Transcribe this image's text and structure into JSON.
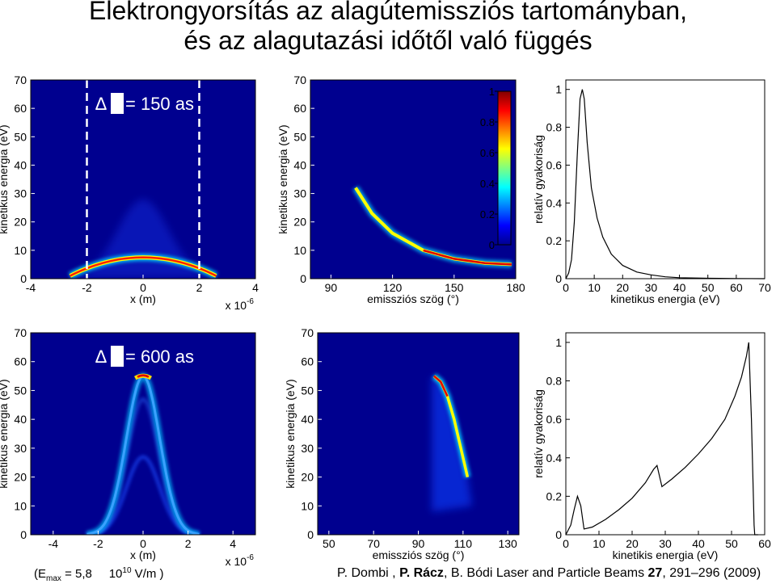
{
  "title_line1": "Elektrongyorsítás az alagútemissziós tartományban,",
  "title_line2": "és az alagutazási időtől való függés",
  "footer": {
    "emax_prefix": "(E",
    "emax_sub": "max",
    "emax_mid": " = 5,8",
    "emax_base": "10",
    "emax_exp": "10",
    "emax_suffix": " V/m )",
    "credit_a": "P. Dombi , ",
    "credit_b": "P. Rácz",
    "credit_c": ", B. Bódi  Laser and Particle Beams ",
    "credit_vol": "27",
    "credit_d": ", 291–296 (2009)"
  },
  "chart_data": [
    {
      "id": "top-left",
      "type": "heatmap",
      "annotation_prefix": "Δ",
      "annotation": "= 150 as",
      "xlabel": "x (m)",
      "x_multiplier_base": "x 10",
      "x_multiplier_exp": "-6",
      "ylabel": "kinetikus energia (eV)",
      "xlim": [
        -4,
        4
      ],
      "ylim": [
        0,
        70
      ],
      "xticks": [
        "-4",
        "-2",
        "0",
        "2",
        "4"
      ],
      "yticks": [
        "0",
        "10",
        "20",
        "30",
        "40",
        "50",
        "60",
        "70"
      ],
      "dashed_lines_x": [
        -2,
        2
      ],
      "band": {
        "peak_energy": 6.5,
        "x_half_width": 2.6
      }
    },
    {
      "id": "top-middle",
      "type": "heatmap",
      "xlabel": "emissziós szög (°)",
      "ylabel": "kinetikus energia (eV)",
      "xlim": [
        80,
        180
      ],
      "ylim": [
        0,
        70
      ],
      "xticks": [
        "90",
        "120",
        "150",
        "180"
      ],
      "yticks": [
        "0",
        "10",
        "20",
        "30",
        "40",
        "50",
        "60",
        "70"
      ],
      "colorbar": {
        "ticks": [
          "0",
          "0.2",
          "0.4",
          "0.6",
          "0.8",
          "1"
        ],
        "range": [
          0,
          1
        ]
      },
      "curve": [
        [
          102,
          32
        ],
        [
          110,
          23
        ],
        [
          120,
          16
        ],
        [
          135,
          10
        ],
        [
          150,
          7
        ],
        [
          165,
          5.5
        ],
        [
          178,
          5
        ]
      ]
    },
    {
      "id": "top-right",
      "type": "line",
      "xlabel": "kinetikus energia (eV)",
      "ylabel": "relatív gyakoriság",
      "xlim": [
        0,
        70
      ],
      "ylim": [
        0,
        1.05
      ],
      "xticks": [
        "0",
        "10",
        "20",
        "30",
        "40",
        "50",
        "60",
        "70"
      ],
      "yticks": [
        "0",
        "0.2",
        "0.4",
        "0.6",
        "0.8",
        "1"
      ],
      "x": [
        0,
        1,
        2,
        3,
        4,
        5,
        5.8,
        6.5,
        7.5,
        9,
        11,
        13,
        16,
        20,
        25,
        30,
        35,
        40,
        50,
        60,
        70
      ],
      "y": [
        0,
        0.03,
        0.1,
        0.3,
        0.65,
        0.95,
        1.0,
        0.95,
        0.72,
        0.48,
        0.32,
        0.22,
        0.13,
        0.07,
        0.035,
        0.02,
        0.01,
        0.005,
        0.002,
        0.001,
        0
      ]
    },
    {
      "id": "bottom-left",
      "type": "heatmap",
      "annotation_prefix": "Δ",
      "annotation": "= 600 as",
      "xlabel": "x (m)",
      "x_multiplier_base": "x 10",
      "x_multiplier_exp": "-6",
      "ylabel": "kinetikus energia (eV)",
      "xlim": [
        -5,
        5
      ],
      "ylim": [
        0,
        70
      ],
      "xticks": [
        "-4",
        "-2",
        "0",
        "2",
        "4"
      ],
      "yticks": [
        "0",
        "10",
        "20",
        "30",
        "40",
        "50",
        "60",
        "70"
      ],
      "arch": {
        "peak_energy": 55,
        "x_half_width": 2.5,
        "secondary_peak": 27
      }
    },
    {
      "id": "bottom-middle",
      "type": "heatmap",
      "xlabel": "emissziós szög (°)",
      "ylabel": "kinetikus energia (eV)",
      "xlim": [
        45,
        135
      ],
      "ylim": [
        0,
        70
      ],
      "xticks": [
        "50",
        "70",
        "90",
        "110",
        "130"
      ],
      "yticks": [
        "0",
        "10",
        "20",
        "30",
        "40",
        "50",
        "60",
        "70"
      ],
      "curve": [
        [
          97,
          55
        ],
        [
          100,
          53
        ],
        [
          103,
          48
        ],
        [
          106,
          40
        ],
        [
          109,
          30
        ],
        [
          112,
          20
        ]
      ]
    },
    {
      "id": "bottom-right",
      "type": "line",
      "xlabel": "kinetikis energia (eV)",
      "ylabel": "relatív gyakoriság",
      "xlim": [
        0,
        60
      ],
      "ylim": [
        0,
        1.05
      ],
      "xticks": [
        "0",
        "10",
        "20",
        "30",
        "40",
        "50",
        "60"
      ],
      "yticks": [
        "0",
        "0.2",
        "0.4",
        "0.6",
        "0.8",
        "1"
      ],
      "x": [
        0,
        1.5,
        2.5,
        3.5,
        4.5,
        5.5,
        8,
        12,
        16,
        20,
        24,
        26.5,
        27.5,
        29,
        32,
        36,
        40,
        44,
        48,
        51,
        53,
        54.5,
        55.2,
        56,
        56.8,
        57,
        58
      ],
      "y": [
        0,
        0.05,
        0.13,
        0.2,
        0.15,
        0.03,
        0.04,
        0.08,
        0.13,
        0.19,
        0.27,
        0.34,
        0.36,
        0.25,
        0.29,
        0.35,
        0.42,
        0.5,
        0.6,
        0.72,
        0.82,
        0.93,
        1.0,
        0.6,
        0.05,
        0,
        0
      ]
    }
  ]
}
